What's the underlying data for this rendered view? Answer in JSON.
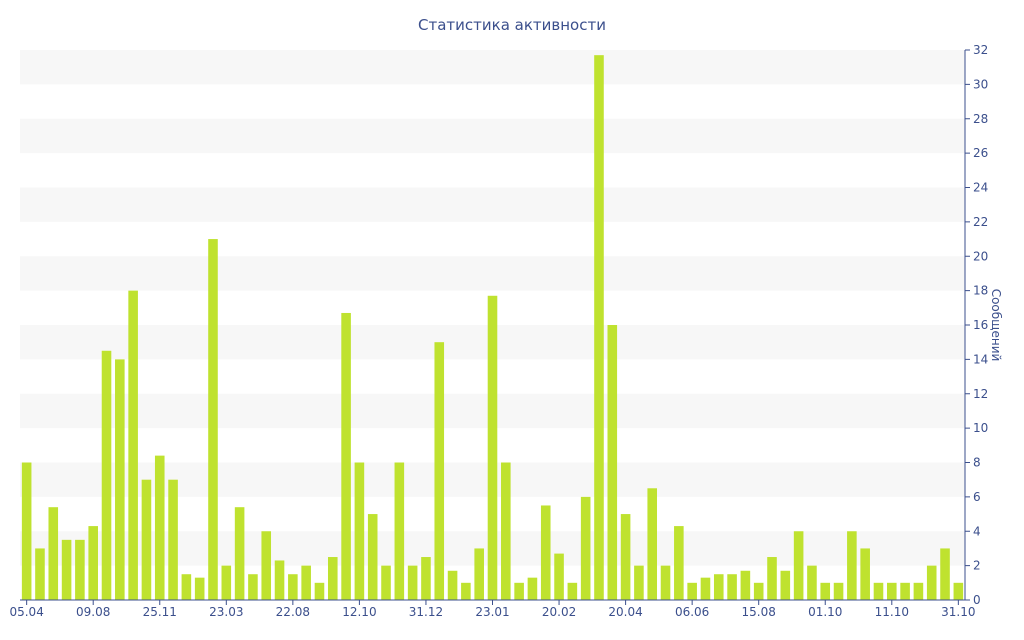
{
  "chart_data": {
    "type": "bar",
    "title": "Статистика активности",
    "ylabel": "Сообщений",
    "xlabel": "",
    "ylim": [
      0,
      32
    ],
    "y_ticks": [
      0,
      2,
      4,
      6,
      8,
      10,
      12,
      14,
      16,
      18,
      20,
      22,
      24,
      26,
      28,
      30,
      32
    ],
    "y_axis_side": "right",
    "bar_color": "#bfe22f",
    "band_color": "#f7f7f7",
    "x_tick_labels": [
      {
        "index": 0,
        "label": "05.04"
      },
      {
        "index": 5,
        "label": "09.08"
      },
      {
        "index": 10,
        "label": "25.11"
      },
      {
        "index": 15,
        "label": "23.03"
      },
      {
        "index": 20,
        "label": "22.08"
      },
      {
        "index": 25,
        "label": "12.10"
      },
      {
        "index": 30,
        "label": "31.12"
      },
      {
        "index": 35,
        "label": "23.01"
      },
      {
        "index": 40,
        "label": "20.02"
      },
      {
        "index": 45,
        "label": "20.04"
      },
      {
        "index": 50,
        "label": "06.06"
      },
      {
        "index": 55,
        "label": "15.08"
      },
      {
        "index": 60,
        "label": "01.10"
      },
      {
        "index": 65,
        "label": "11.10"
      },
      {
        "index": 70,
        "label": "31.10"
      }
    ],
    "values": [
      8,
      3,
      5.4,
      3.5,
      3.5,
      4.3,
      14.5,
      14,
      18,
      7,
      8.4,
      7,
      1.5,
      1.3,
      21,
      2,
      5.4,
      1.5,
      4,
      2.3,
      1.5,
      2,
      1,
      2.5,
      16.7,
      8,
      5,
      2,
      8,
      2,
      2.5,
      15,
      1.7,
      1,
      3,
      17.7,
      8,
      1,
      1.3,
      5.5,
      2.7,
      1,
      6,
      31.7,
      16,
      5,
      2,
      6.5,
      2,
      4.3,
      1,
      1.3,
      1.5,
      1.5,
      1.7,
      1,
      2.5,
      1.7,
      4,
      2,
      1,
      1,
      4,
      3,
      1,
      1,
      1,
      1,
      2,
      3,
      1
    ]
  }
}
